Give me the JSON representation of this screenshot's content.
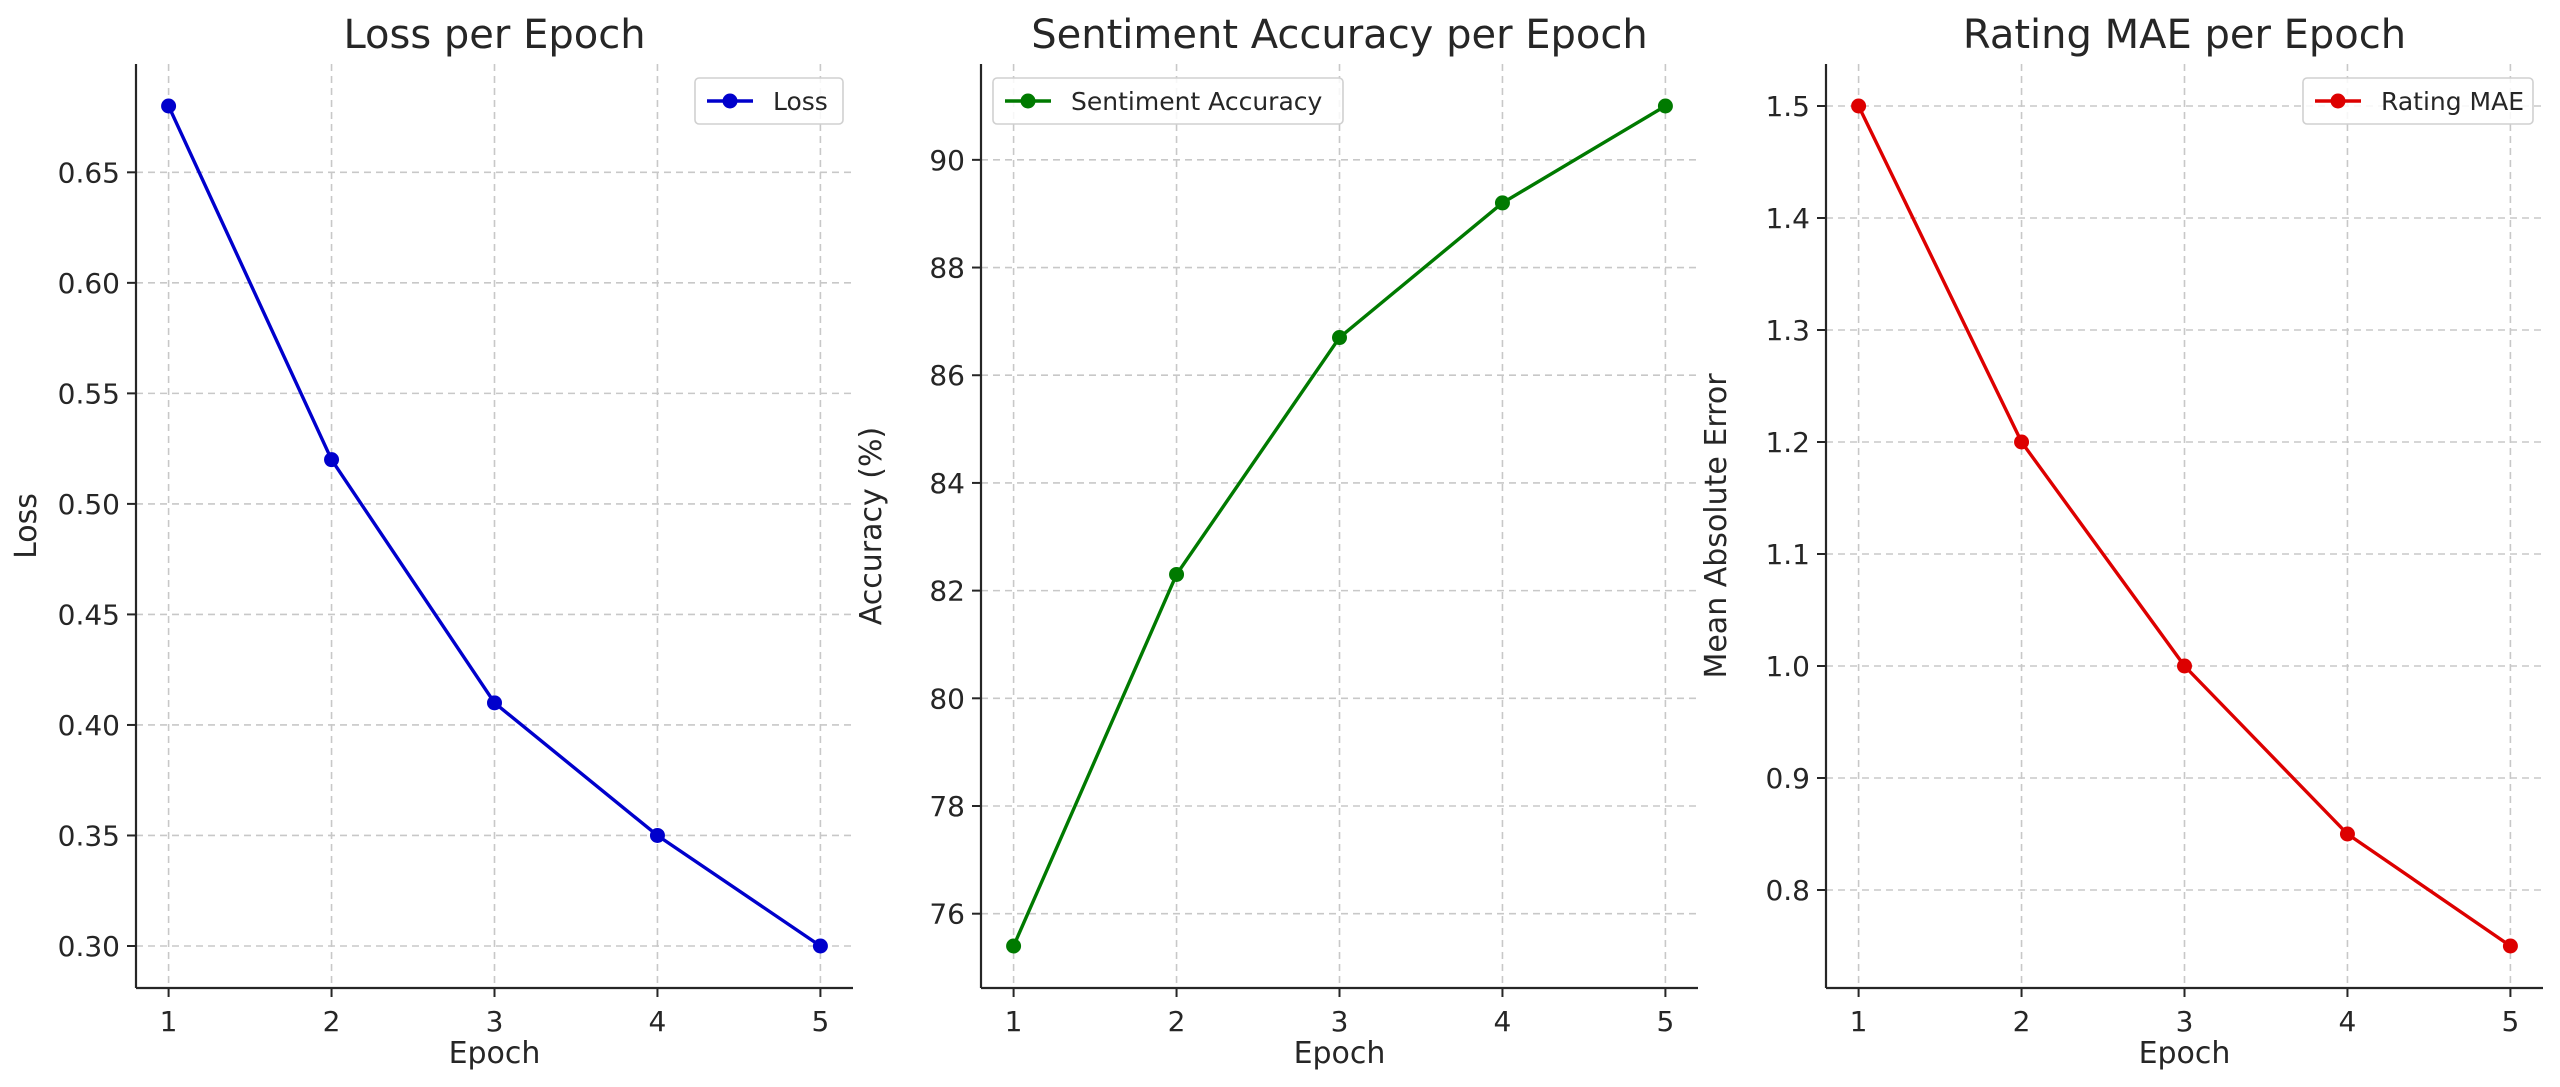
{
  "colors": {
    "loss": "#0000cc",
    "accuracy": "#007a00",
    "mae": "#dd0000"
  },
  "chart_data": [
    {
      "type": "line",
      "title": "Loss per Epoch",
      "xlabel": "Epoch",
      "ylabel": "Loss",
      "x": [
        1,
        2,
        3,
        4,
        5
      ],
      "series": [
        {
          "name": "Loss",
          "values": [
            0.68,
            0.52,
            0.41,
            0.35,
            0.3
          ],
          "color": "#0000cc",
          "marker": "circle"
        }
      ],
      "xlim": [
        0.8,
        5.2
      ],
      "ylim": [
        0.281,
        0.699
      ],
      "xticks": [
        "1",
        "2",
        "3",
        "4",
        "5"
      ],
      "yticks": [
        "0.30",
        "0.35",
        "0.40",
        "0.45",
        "0.50",
        "0.55",
        "0.60",
        "0.65"
      ],
      "grid": true,
      "legend": "top-right"
    },
    {
      "type": "line",
      "title": "Sentiment Accuracy per Epoch",
      "xlabel": "Epoch",
      "ylabel": "Accuracy (%)",
      "x": [
        1,
        2,
        3,
        4,
        5
      ],
      "series": [
        {
          "name": "Sentiment Accuracy",
          "values": [
            75.4,
            82.3,
            86.7,
            89.2,
            91.0
          ],
          "color": "#007a00",
          "marker": "circle"
        }
      ],
      "xlim": [
        0.8,
        5.2
      ],
      "ylim": [
        74.62,
        91.78
      ],
      "xticks": [
        "1",
        "2",
        "3",
        "4",
        "5"
      ],
      "yticks": [
        "76",
        "78",
        "80",
        "82",
        "84",
        "86",
        "88",
        "90"
      ],
      "grid": true,
      "legend": "top-left"
    },
    {
      "type": "line",
      "title": "Rating MAE per Epoch",
      "xlabel": "Epoch",
      "ylabel": "Mean Absolute Error",
      "x": [
        1,
        2,
        3,
        4,
        5
      ],
      "series": [
        {
          "name": "Rating MAE",
          "values": [
            1.5,
            1.2,
            1.0,
            0.85,
            0.75
          ],
          "color": "#dd0000",
          "marker": "circle"
        }
      ],
      "xlim": [
        0.8,
        5.2
      ],
      "ylim": [
        0.7125,
        1.5375
      ],
      "xticks": [
        "1",
        "2",
        "3",
        "4",
        "5"
      ],
      "yticks": [
        "0.8",
        "0.9",
        "1.0",
        "1.1",
        "1.2",
        "1.3",
        "1.4",
        "1.5"
      ],
      "grid": true,
      "legend": "top-right"
    }
  ]
}
